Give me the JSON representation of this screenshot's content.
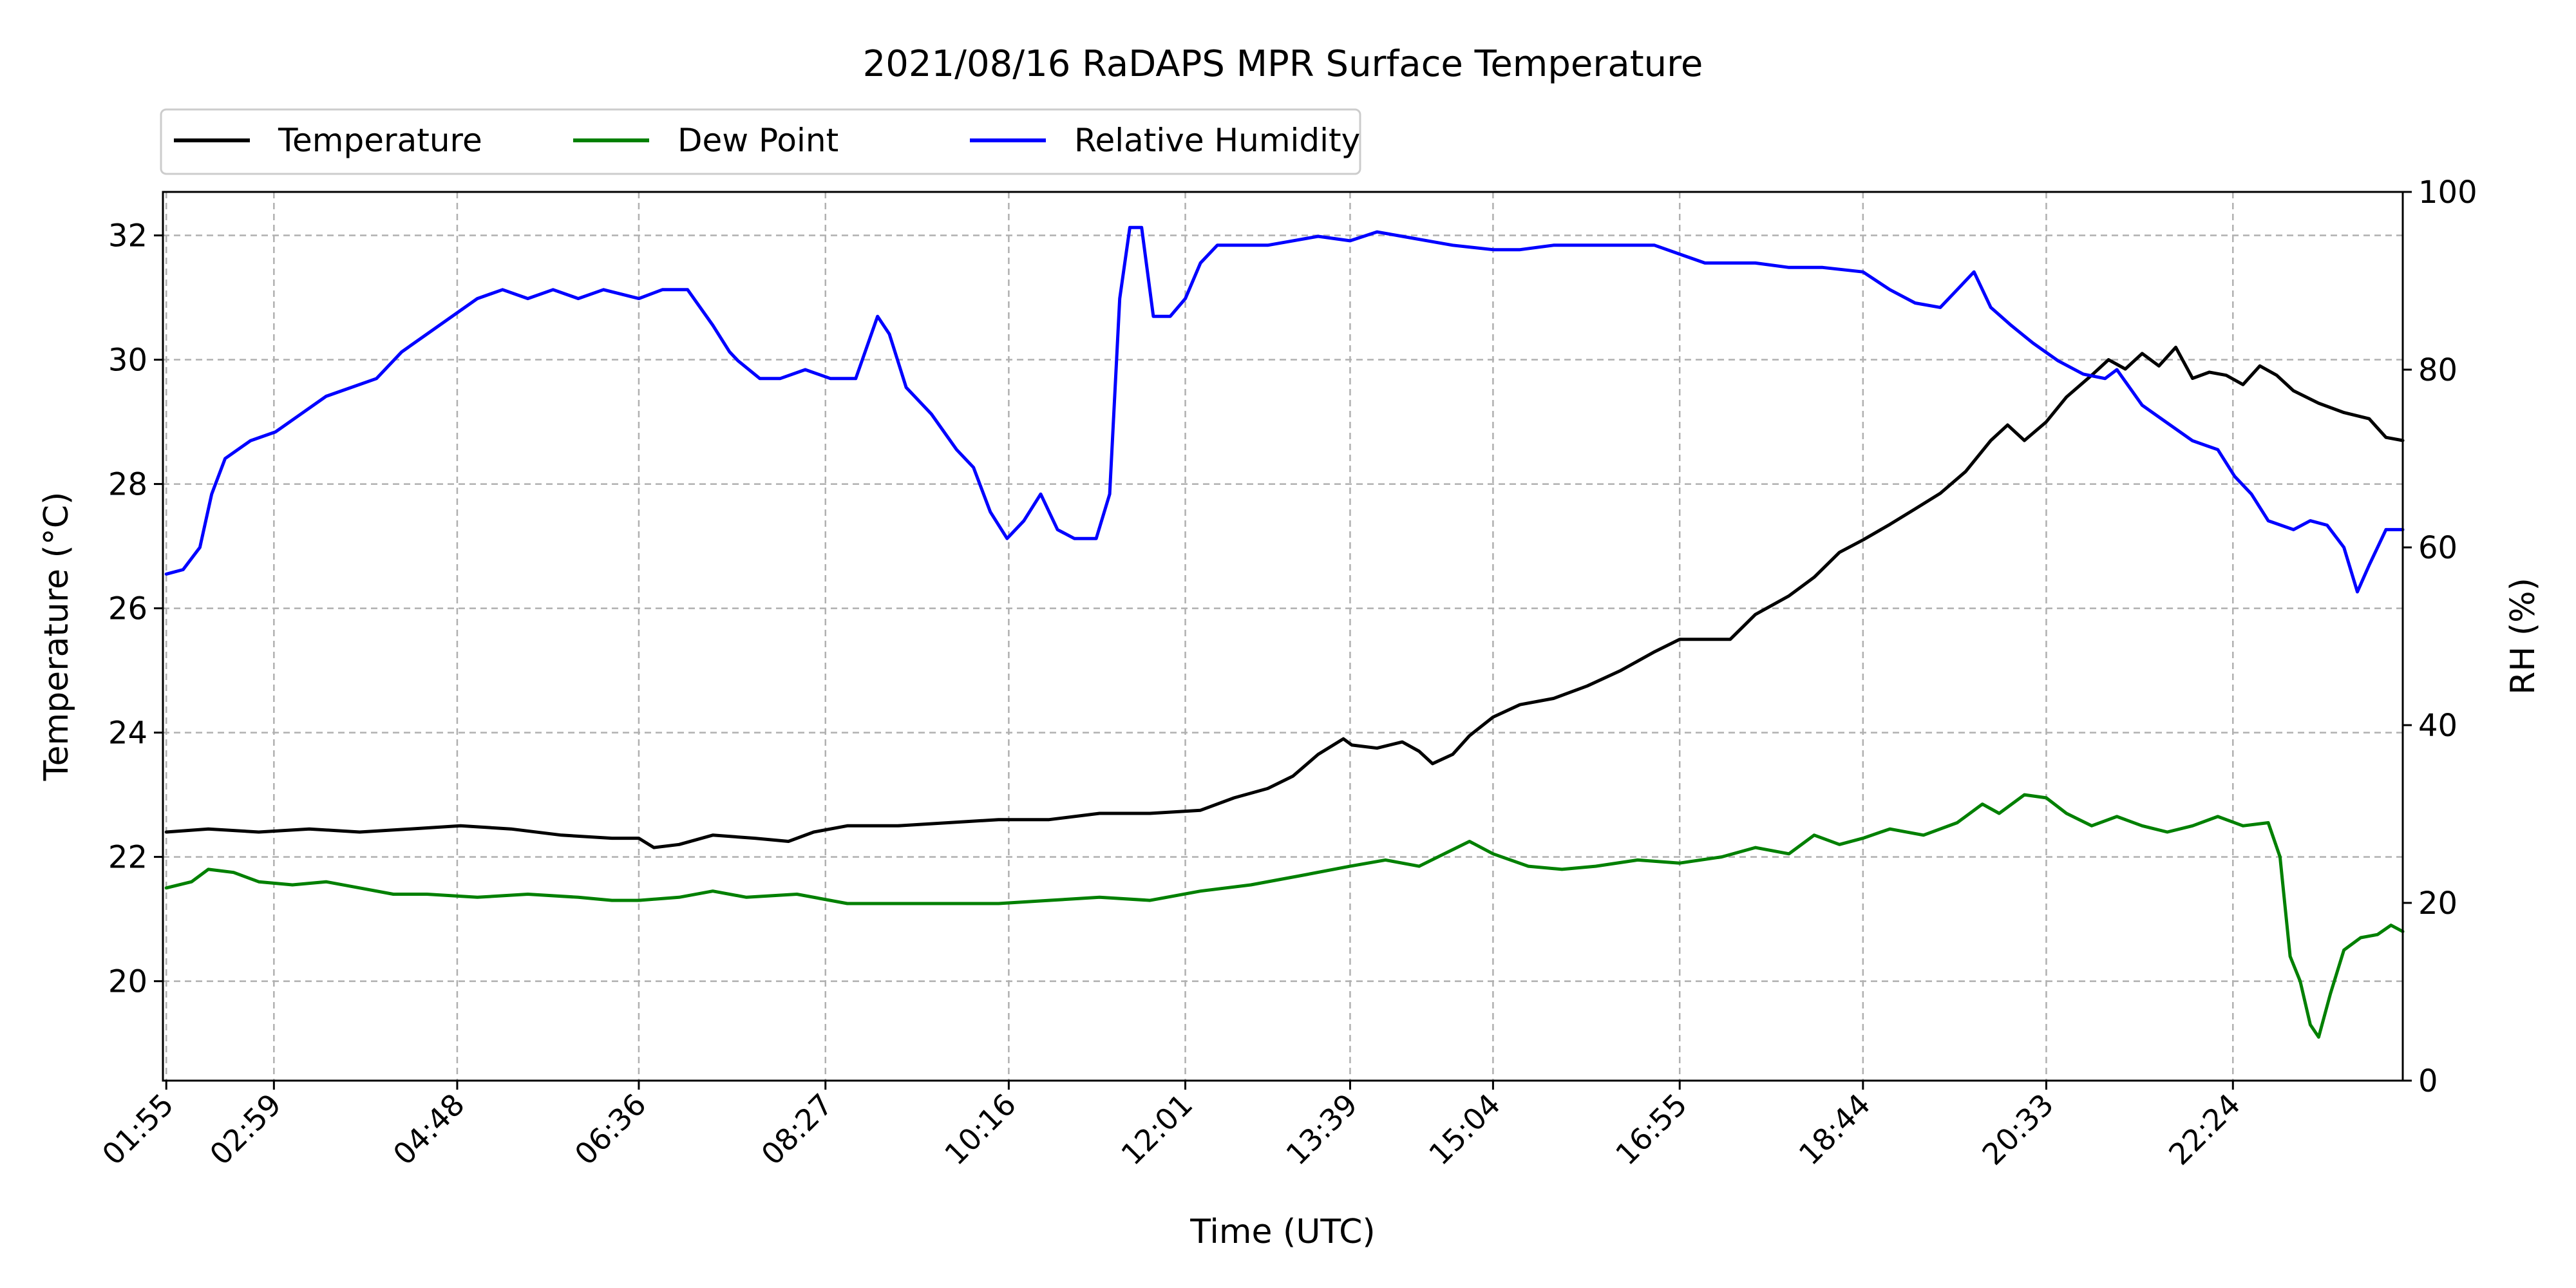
{
  "chart_data": {
    "type": "line",
    "title": "2021/08/16 RaDAPS MPR Surface Temperature",
    "xlabel": "Time (UTC)",
    "ylabel_left": "Temperature ($^\\circ$C)",
    "ylabel_left_display": "Temperature (°C)",
    "ylabel_right": "RH (%)",
    "x_ticks": [
      "01:55",
      "02:59",
      "04:48",
      "06:36",
      "08:27",
      "10:16",
      "12:01",
      "13:39",
      "15:04",
      "16:55",
      "18:44",
      "20:33",
      "22:24"
    ],
    "x_tick_minutes": [
      115,
      179,
      288,
      396,
      507,
      616,
      721,
      819,
      904,
      1015,
      1124,
      1233,
      1344
    ],
    "xlim_minutes": [
      113,
      1445
    ],
    "ylim_left": [
      18.4,
      32.7
    ],
    "yticks_left": [
      20,
      22,
      24,
      26,
      28,
      30,
      32
    ],
    "ylim_right": [
      0,
      100
    ],
    "yticks_right": [
      0,
      20,
      40,
      60,
      80,
      100
    ],
    "grid": true,
    "legend_position": "above-left",
    "series": [
      {
        "name": "Temperature",
        "axis": "left",
        "color": "#000000",
        "points": [
          [
            115,
            22.4
          ],
          [
            140,
            22.45
          ],
          [
            170,
            22.4
          ],
          [
            200,
            22.45
          ],
          [
            230,
            22.4
          ],
          [
            260,
            22.45
          ],
          [
            290,
            22.5
          ],
          [
            320,
            22.45
          ],
          [
            350,
            22.35
          ],
          [
            380,
            22.3
          ],
          [
            396,
            22.3
          ],
          [
            405,
            22.15
          ],
          [
            420,
            22.2
          ],
          [
            440,
            22.35
          ],
          [
            465,
            22.3
          ],
          [
            485,
            22.25
          ],
          [
            500,
            22.4
          ],
          [
            520,
            22.5
          ],
          [
            550,
            22.5
          ],
          [
            580,
            22.55
          ],
          [
            610,
            22.6
          ],
          [
            640,
            22.6
          ],
          [
            670,
            22.7
          ],
          [
            700,
            22.7
          ],
          [
            730,
            22.75
          ],
          [
            750,
            22.95
          ],
          [
            770,
            23.1
          ],
          [
            785,
            23.3
          ],
          [
            800,
            23.65
          ],
          [
            815,
            23.9
          ],
          [
            820,
            23.8
          ],
          [
            835,
            23.75
          ],
          [
            850,
            23.85
          ],
          [
            860,
            23.7
          ],
          [
            868,
            23.5
          ],
          [
            880,
            23.65
          ],
          [
            890,
            23.95
          ],
          [
            904,
            24.25
          ],
          [
            920,
            24.45
          ],
          [
            940,
            24.55
          ],
          [
            960,
            24.75
          ],
          [
            980,
            25.0
          ],
          [
            1000,
            25.3
          ],
          [
            1015,
            25.5
          ],
          [
            1030,
            25.5
          ],
          [
            1045,
            25.5
          ],
          [
            1060,
            25.9
          ],
          [
            1080,
            26.2
          ],
          [
            1095,
            26.5
          ],
          [
            1110,
            26.9
          ],
          [
            1124,
            27.1
          ],
          [
            1140,
            27.35
          ],
          [
            1155,
            27.6
          ],
          [
            1170,
            27.85
          ],
          [
            1185,
            28.2
          ],
          [
            1200,
            28.7
          ],
          [
            1210,
            28.95
          ],
          [
            1220,
            28.7
          ],
          [
            1233,
            29.0
          ],
          [
            1245,
            29.4
          ],
          [
            1260,
            29.75
          ],
          [
            1270,
            30.0
          ],
          [
            1280,
            29.85
          ],
          [
            1290,
            30.1
          ],
          [
            1300,
            29.9
          ],
          [
            1310,
            30.2
          ],
          [
            1320,
            29.7
          ],
          [
            1330,
            29.8
          ],
          [
            1340,
            29.75
          ],
          [
            1350,
            29.6
          ],
          [
            1360,
            29.9
          ],
          [
            1370,
            29.75
          ],
          [
            1380,
            29.5
          ],
          [
            1395,
            29.3
          ],
          [
            1410,
            29.15
          ],
          [
            1425,
            29.05
          ],
          [
            1435,
            28.75
          ],
          [
            1445,
            28.7
          ]
        ]
      },
      {
        "name": "Dew Point",
        "axis": "left",
        "color": "#008000",
        "points": [
          [
            115,
            21.5
          ],
          [
            130,
            21.6
          ],
          [
            140,
            21.8
          ],
          [
            155,
            21.75
          ],
          [
            170,
            21.6
          ],
          [
            190,
            21.55
          ],
          [
            210,
            21.6
          ],
          [
            230,
            21.5
          ],
          [
            250,
            21.4
          ],
          [
            270,
            21.4
          ],
          [
            300,
            21.35
          ],
          [
            330,
            21.4
          ],
          [
            360,
            21.35
          ],
          [
            380,
            21.3
          ],
          [
            396,
            21.3
          ],
          [
            420,
            21.35
          ],
          [
            440,
            21.45
          ],
          [
            460,
            21.35
          ],
          [
            490,
            21.4
          ],
          [
            520,
            21.25
          ],
          [
            550,
            21.25
          ],
          [
            580,
            21.25
          ],
          [
            610,
            21.25
          ],
          [
            640,
            21.3
          ],
          [
            670,
            21.35
          ],
          [
            700,
            21.3
          ],
          [
            730,
            21.45
          ],
          [
            760,
            21.55
          ],
          [
            790,
            21.7
          ],
          [
            819,
            21.85
          ],
          [
            840,
            21.95
          ],
          [
            860,
            21.85
          ],
          [
            875,
            22.05
          ],
          [
            890,
            22.25
          ],
          [
            904,
            22.05
          ],
          [
            925,
            21.85
          ],
          [
            945,
            21.8
          ],
          [
            965,
            21.85
          ],
          [
            990,
            21.95
          ],
          [
            1015,
            21.9
          ],
          [
            1040,
            22.0
          ],
          [
            1060,
            22.15
          ],
          [
            1080,
            22.05
          ],
          [
            1095,
            22.35
          ],
          [
            1110,
            22.2
          ],
          [
            1124,
            22.3
          ],
          [
            1140,
            22.45
          ],
          [
            1160,
            22.35
          ],
          [
            1180,
            22.55
          ],
          [
            1195,
            22.85
          ],
          [
            1205,
            22.7
          ],
          [
            1220,
            23.0
          ],
          [
            1233,
            22.95
          ],
          [
            1245,
            22.7
          ],
          [
            1260,
            22.5
          ],
          [
            1275,
            22.65
          ],
          [
            1290,
            22.5
          ],
          [
            1305,
            22.4
          ],
          [
            1320,
            22.5
          ],
          [
            1335,
            22.65
          ],
          [
            1350,
            22.5
          ],
          [
            1365,
            22.55
          ],
          [
            1372,
            22.0
          ],
          [
            1378,
            20.4
          ],
          [
            1384,
            20.0
          ],
          [
            1390,
            19.3
          ],
          [
            1395,
            19.1
          ],
          [
            1402,
            19.8
          ],
          [
            1410,
            20.5
          ],
          [
            1420,
            20.7
          ],
          [
            1430,
            20.75
          ],
          [
            1438,
            20.9
          ],
          [
            1445,
            20.8
          ]
        ]
      },
      {
        "name": "Relative Humidity",
        "axis": "right",
        "color": "#0000ff",
        "points": [
          [
            115,
            57
          ],
          [
            125,
            57.5
          ],
          [
            135,
            60
          ],
          [
            142,
            66
          ],
          [
            150,
            70
          ],
          [
            165,
            72
          ],
          [
            180,
            73
          ],
          [
            195,
            75
          ],
          [
            210,
            77
          ],
          [
            225,
            78
          ],
          [
            240,
            79
          ],
          [
            255,
            82
          ],
          [
            270,
            84
          ],
          [
            285,
            86
          ],
          [
            300,
            88
          ],
          [
            315,
            89
          ],
          [
            330,
            88
          ],
          [
            345,
            89
          ],
          [
            360,
            88
          ],
          [
            375,
            89
          ],
          [
            396,
            88
          ],
          [
            410,
            89
          ],
          [
            425,
            89
          ],
          [
            440,
            85
          ],
          [
            450,
            82
          ],
          [
            455,
            81
          ],
          [
            468,
            79
          ],
          [
            480,
            79
          ],
          [
            495,
            80
          ],
          [
            510,
            79
          ],
          [
            525,
            79
          ],
          [
            538,
            86
          ],
          [
            545,
            84
          ],
          [
            555,
            78
          ],
          [
            570,
            75
          ],
          [
            585,
            71
          ],
          [
            595,
            69
          ],
          [
            605,
            64
          ],
          [
            615,
            61
          ],
          [
            625,
            63
          ],
          [
            635,
            66
          ],
          [
            645,
            62
          ],
          [
            655,
            61
          ],
          [
            668,
            61
          ],
          [
            676,
            66
          ],
          [
            682,
            88
          ],
          [
            688,
            96
          ],
          [
            695,
            96
          ],
          [
            702,
            86
          ],
          [
            712,
            86
          ],
          [
            721,
            88
          ],
          [
            730,
            92
          ],
          [
            740,
            94
          ],
          [
            755,
            94
          ],
          [
            770,
            94
          ],
          [
            785,
            94.5
          ],
          [
            800,
            95
          ],
          [
            819,
            94.5
          ],
          [
            835,
            95.5
          ],
          [
            850,
            95
          ],
          [
            865,
            94.5
          ],
          [
            880,
            94
          ],
          [
            904,
            93.5
          ],
          [
            920,
            93.5
          ],
          [
            940,
            94
          ],
          [
            960,
            94
          ],
          [
            980,
            94
          ],
          [
            1000,
            94
          ],
          [
            1015,
            93
          ],
          [
            1030,
            92
          ],
          [
            1045,
            92
          ],
          [
            1060,
            92
          ],
          [
            1080,
            91.5
          ],
          [
            1100,
            91.5
          ],
          [
            1124,
            91
          ],
          [
            1140,
            89
          ],
          [
            1155,
            87.5
          ],
          [
            1170,
            87
          ],
          [
            1180,
            89
          ],
          [
            1190,
            91
          ],
          [
            1200,
            87
          ],
          [
            1212,
            85
          ],
          [
            1225,
            83
          ],
          [
            1240,
            81
          ],
          [
            1255,
            79.5
          ],
          [
            1268,
            79
          ],
          [
            1275,
            80
          ],
          [
            1290,
            76
          ],
          [
            1305,
            74
          ],
          [
            1320,
            72
          ],
          [
            1335,
            71
          ],
          [
            1345,
            68
          ],
          [
            1355,
            66
          ],
          [
            1365,
            63
          ],
          [
            1380,
            62
          ],
          [
            1390,
            63
          ],
          [
            1400,
            62.5
          ],
          [
            1410,
            60
          ],
          [
            1418,
            55
          ],
          [
            1425,
            58
          ],
          [
            1435,
            62
          ],
          [
            1445,
            62
          ]
        ]
      }
    ]
  }
}
